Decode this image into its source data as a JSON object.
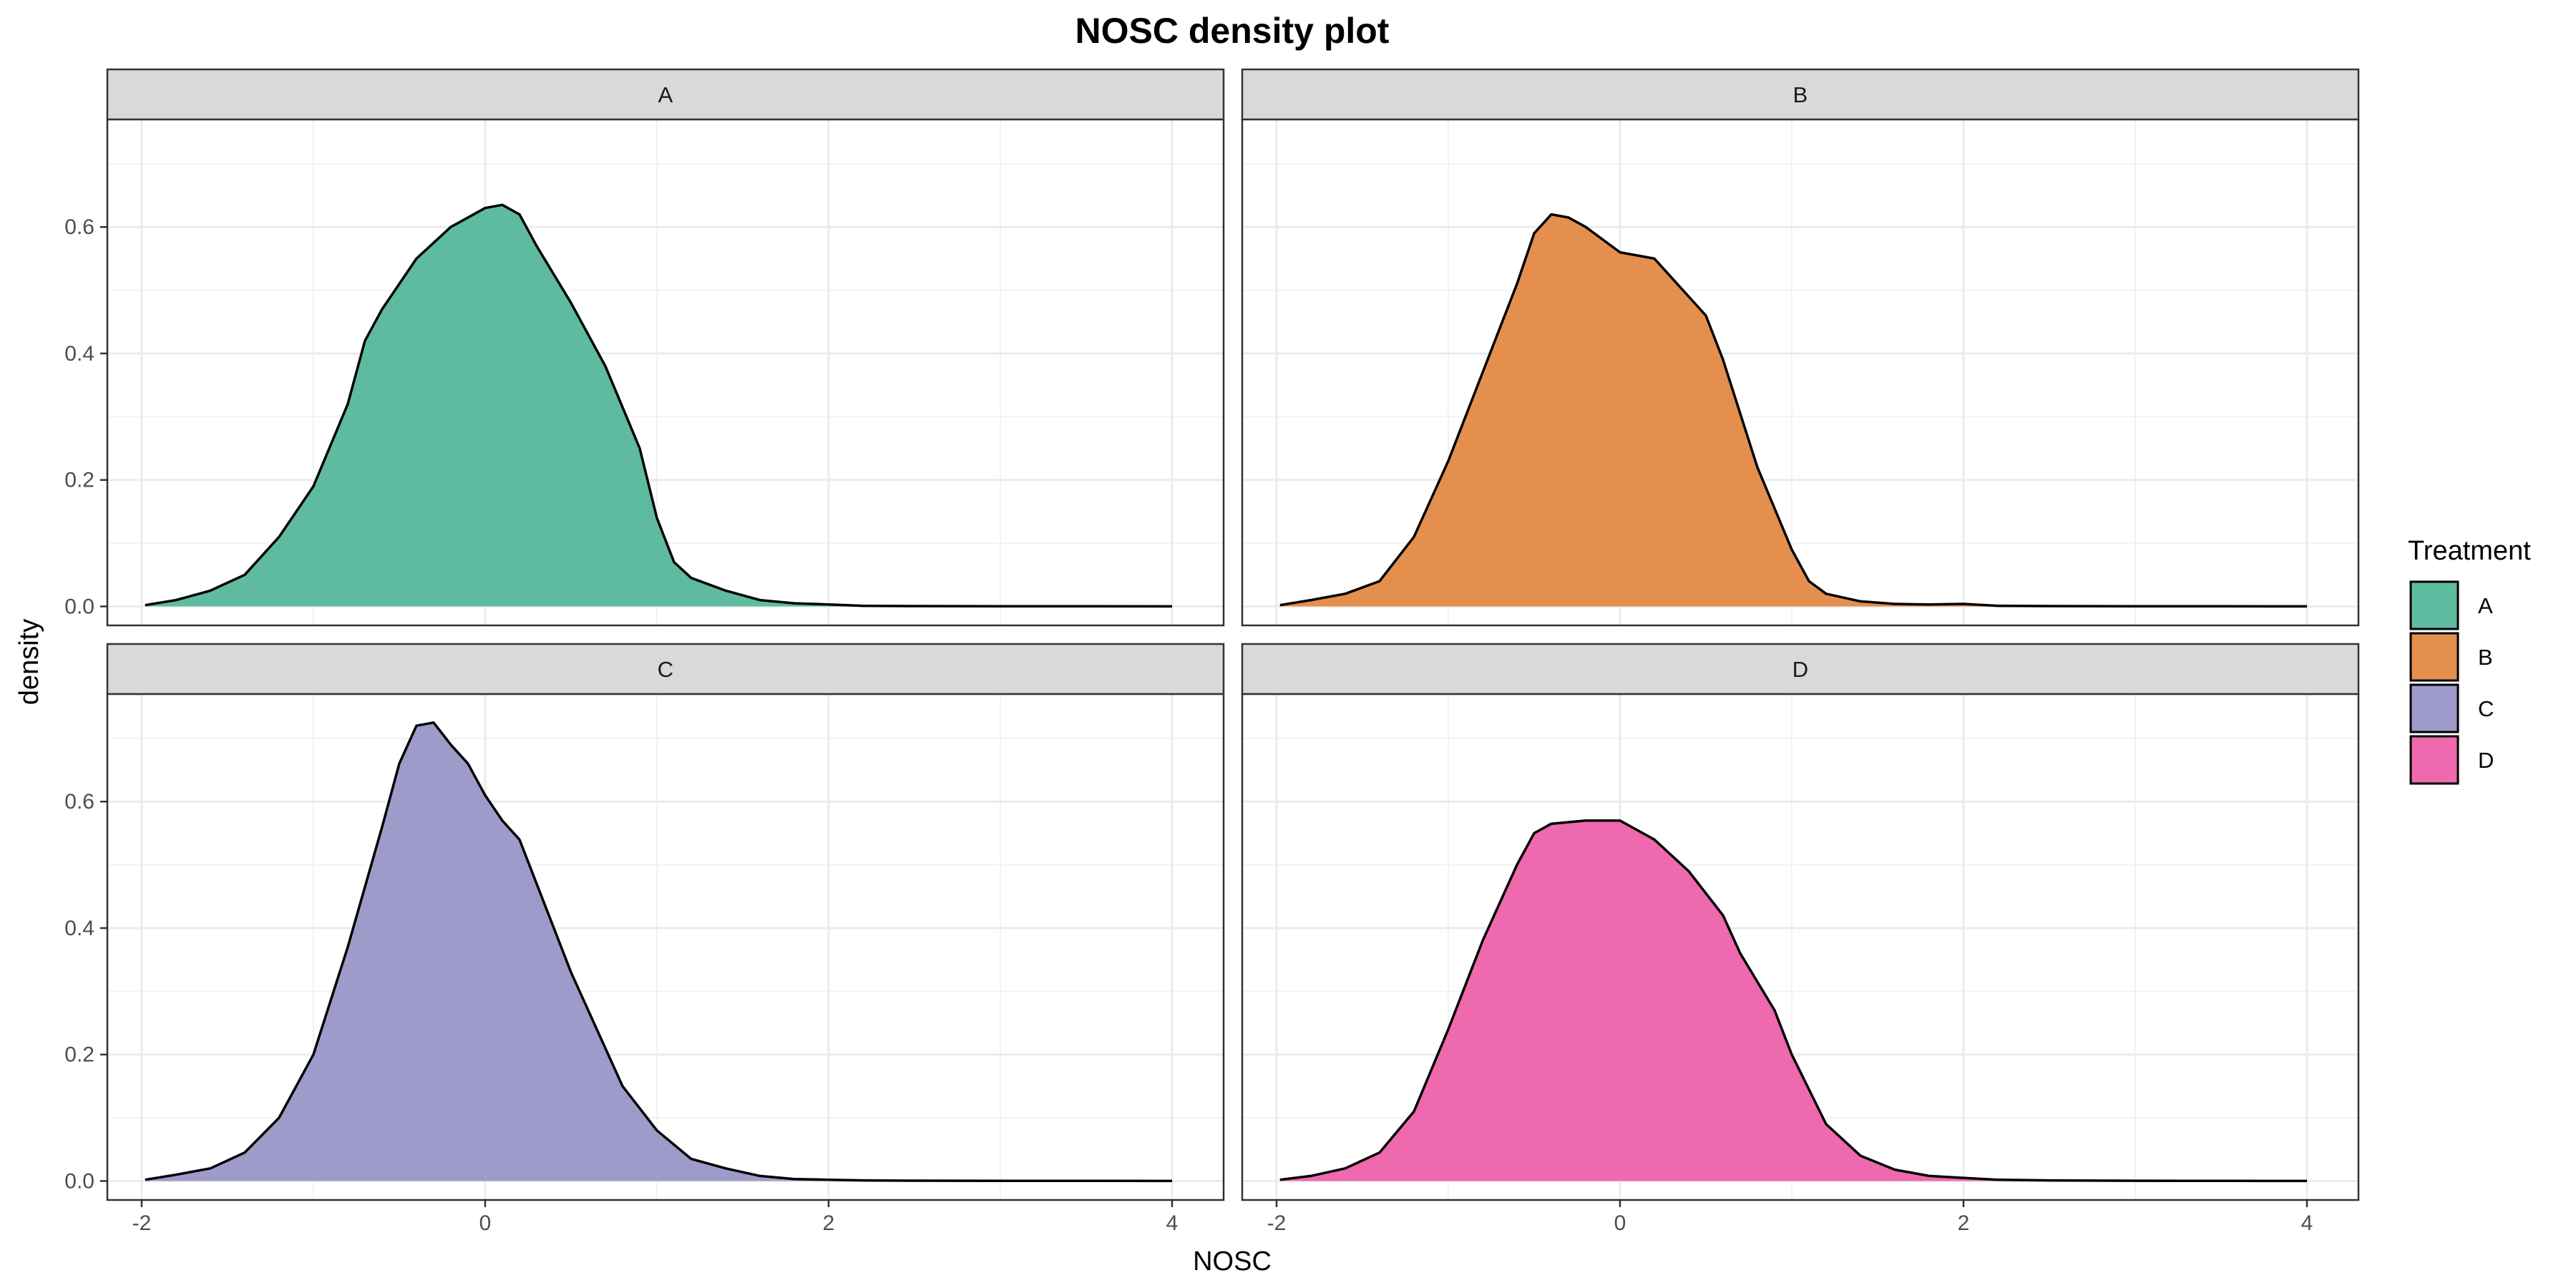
{
  "chart_data": {
    "type": "area",
    "title": "NOSC density plot",
    "xlabel": "NOSC",
    "ylabel": "density",
    "xlim": [
      -2.2,
      4.3
    ],
    "ylim": [
      -0.03,
      0.77
    ],
    "x_ticks": [
      -2,
      0,
      2,
      4
    ],
    "x_tick_labels": [
      "-2",
      "0",
      "2",
      "4"
    ],
    "y_ticks": [
      0.0,
      0.2,
      0.4,
      0.6
    ],
    "y_tick_labels": [
      "0.0",
      "0.2",
      "0.4",
      "0.6"
    ],
    "grid": true,
    "legend": {
      "title": "Treatment",
      "position": "right"
    },
    "panels": [
      {
        "name": "A",
        "color": "#1B9E77",
        "x": [
          -1.98,
          -1.8,
          -1.6,
          -1.4,
          -1.2,
          -1.0,
          -0.8,
          -0.7,
          -0.6,
          -0.4,
          -0.2,
          0.0,
          0.1,
          0.2,
          0.3,
          0.5,
          0.7,
          0.9,
          1.0,
          1.1,
          1.2,
          1.4,
          1.6,
          1.8,
          2.0,
          2.2,
          2.5,
          3.0,
          3.5,
          4.0
        ],
        "y": [
          0.002,
          0.01,
          0.025,
          0.05,
          0.11,
          0.19,
          0.32,
          0.42,
          0.47,
          0.55,
          0.6,
          0.63,
          0.635,
          0.62,
          0.57,
          0.48,
          0.38,
          0.25,
          0.14,
          0.07,
          0.045,
          0.025,
          0.01,
          0.005,
          0.003,
          0.001,
          0.0005,
          0.0003,
          0.0002,
          0.0001
        ]
      },
      {
        "name": "B",
        "color": "#D95F02",
        "x": [
          -1.98,
          -1.8,
          -1.6,
          -1.4,
          -1.2,
          -1.0,
          -0.8,
          -0.6,
          -0.5,
          -0.4,
          -0.3,
          -0.2,
          -0.1,
          0.0,
          0.1,
          0.2,
          0.3,
          0.5,
          0.6,
          0.8,
          1.0,
          1.1,
          1.2,
          1.4,
          1.6,
          1.8,
          2.0,
          2.2,
          2.5,
          3.0,
          3.5,
          4.0
        ],
        "y": [
          0.002,
          0.01,
          0.02,
          0.04,
          0.11,
          0.23,
          0.37,
          0.51,
          0.59,
          0.62,
          0.615,
          0.6,
          0.58,
          0.56,
          0.555,
          0.55,
          0.52,
          0.46,
          0.39,
          0.22,
          0.09,
          0.04,
          0.02,
          0.008,
          0.004,
          0.003,
          0.004,
          0.001,
          0.0005,
          0.0003,
          0.0002,
          0.0001
        ]
      },
      {
        "name": "C",
        "color": "#7570B3",
        "x": [
          -1.98,
          -1.8,
          -1.6,
          -1.4,
          -1.2,
          -1.0,
          -0.8,
          -0.6,
          -0.5,
          -0.4,
          -0.3,
          -0.2,
          -0.1,
          0.0,
          0.1,
          0.2,
          0.3,
          0.5,
          0.7,
          0.8,
          1.0,
          1.2,
          1.4,
          1.6,
          1.8,
          2.0,
          2.2,
          2.5,
          3.0,
          3.5,
          4.0
        ],
        "y": [
          0.002,
          0.01,
          0.02,
          0.045,
          0.1,
          0.2,
          0.37,
          0.56,
          0.66,
          0.72,
          0.725,
          0.69,
          0.66,
          0.61,
          0.57,
          0.54,
          0.47,
          0.33,
          0.21,
          0.15,
          0.08,
          0.035,
          0.02,
          0.008,
          0.003,
          0.002,
          0.001,
          0.0005,
          0.0003,
          0.0002,
          0.0001
        ]
      },
      {
        "name": "D",
        "color": "#E7298A",
        "x": [
          -1.98,
          -1.8,
          -1.6,
          -1.4,
          -1.2,
          -1.0,
          -0.8,
          -0.6,
          -0.5,
          -0.4,
          -0.2,
          0.0,
          0.1,
          0.2,
          0.4,
          0.6,
          0.7,
          0.9,
          1.0,
          1.2,
          1.4,
          1.6,
          1.8,
          2.0,
          2.2,
          2.5,
          3.0,
          3.5,
          4.0
        ],
        "y": [
          0.002,
          0.008,
          0.02,
          0.045,
          0.11,
          0.24,
          0.38,
          0.5,
          0.55,
          0.565,
          0.57,
          0.57,
          0.555,
          0.54,
          0.49,
          0.42,
          0.36,
          0.27,
          0.2,
          0.09,
          0.04,
          0.018,
          0.008,
          0.005,
          0.002,
          0.001,
          0.0004,
          0.0002,
          0.0001
        ]
      }
    ]
  }
}
